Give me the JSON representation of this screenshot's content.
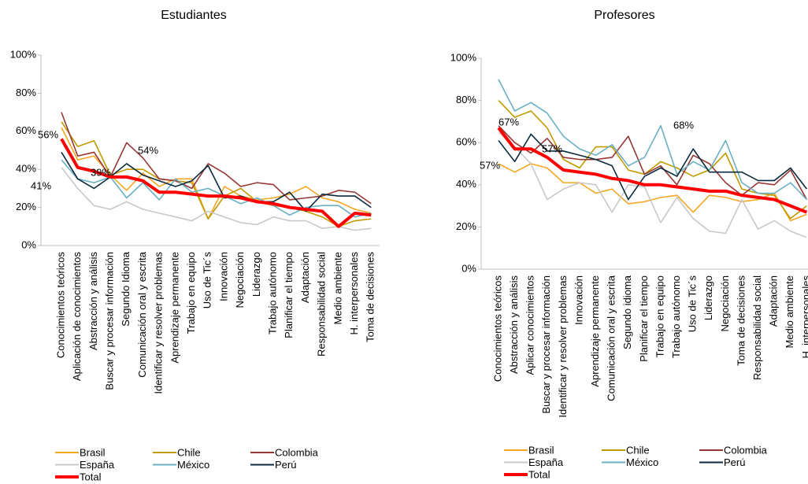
{
  "chart_data": [
    {
      "type": "line",
      "title": "Estudiantes",
      "categories": [
        "Conocimientos teóricos",
        "Aplicación de conocimientos",
        "Abstracción y análisis",
        "Buscar y procesar información",
        "Segundo Idioma",
        "Comunicación oral y escrita",
        "Identificar y resolver problemas",
        "Aprendizaje permanente",
        "Trabajo en equipo",
        "Uso de Tic´s",
        "Innovación",
        "Negociación",
        "Liderazgo",
        "Trabajo autónomo",
        "Planificar el tiempo",
        "Adaptación",
        "Responsabilidad social",
        "Medio ambiente",
        "H. interpersonales",
        "Toma de decisiones"
      ],
      "series": [
        {
          "name": "Brasil",
          "color": "#f5a623",
          "values": [
            62,
            45,
            47,
            37,
            29,
            38,
            31,
            35,
            35,
            14,
            31,
            26,
            24,
            25,
            27,
            31,
            25,
            23,
            19,
            17
          ]
        },
        {
          "name": "Chile",
          "color": "#c09a00",
          "values": [
            65,
            52,
            55,
            37,
            40,
            40,
            35,
            34,
            33,
            14,
            26,
            30,
            23,
            21,
            20,
            18,
            15,
            10,
            13,
            14
          ]
        },
        {
          "name": "Colombia",
          "color": "#953735",
          "values": [
            70,
            47,
            49,
            36,
            54,
            46,
            35,
            34,
            30,
            43,
            38,
            31,
            33,
            32,
            24,
            25,
            26,
            29,
            28,
            22
          ]
        },
        {
          "name": "España",
          "color": "#c8c8c8",
          "values": [
            41,
            30,
            21,
            19,
            23,
            19,
            17,
            15,
            13,
            18,
            15,
            12,
            11,
            15,
            13,
            13,
            9,
            10,
            8,
            9
          ]
        },
        {
          "name": "México",
          "color": "#6aafc4",
          "values": [
            45,
            35,
            33,
            36,
            25,
            33,
            24,
            35,
            28,
            30,
            26,
            22,
            25,
            21,
            16,
            20,
            21,
            21,
            15,
            17
          ]
        },
        {
          "name": "Perú",
          "color": "#0b2a3c",
          "values": [
            49,
            35,
            30,
            36,
            43,
            37,
            34,
            31,
            34,
            42,
            25,
            26,
            23,
            23,
            28,
            18,
            27,
            26,
            26,
            20
          ]
        },
        {
          "name": "Total",
          "color": "#ff0000",
          "values": [
            56,
            41,
            39,
            36,
            36,
            34,
            28,
            28,
            27,
            26,
            26,
            25,
            23,
            22,
            20,
            19,
            18,
            10,
            17,
            16
          ]
        }
      ],
      "annotations": [
        "56%",
        "41%",
        "39%",
        "54%"
      ],
      "ylim": [
        0,
        100
      ],
      "yticks": [
        {
          "value": 0,
          "label": "0%"
        },
        {
          "value": 20,
          "label": "20%"
        },
        {
          "value": 40,
          "label": "40%"
        },
        {
          "value": 60,
          "label": "60%"
        },
        {
          "value": 80,
          "label": "80%"
        },
        {
          "value": 100,
          "label": "100%"
        }
      ],
      "grid": false,
      "legend": "bottom"
    },
    {
      "type": "line",
      "title": "Profesores",
      "categories": [
        "Conocimientos teóricos",
        "Abstracción y análisis",
        "Aplicar conocimientos",
        "Buscar y procesar información",
        "Identificar y resolver problemas",
        "Innovación",
        "Aprendizaje permanente",
        "Comunicación oral y escrita",
        "Segundo idioma",
        "Planificar el tiempo",
        "Trabajo en equipo",
        "Trabajo autónomo",
        "Uso de Tic´s",
        "Liderazgo",
        "Negociación",
        "Toma de decisiones",
        "Responsabilidad social",
        "Adaptación",
        "Medio ambiente",
        "H. interpersonales"
      ],
      "series": [
        {
          "name": "Brasil",
          "color": "#f5a623",
          "values": [
            50,
            46,
            50,
            48,
            41,
            41,
            36,
            38,
            31,
            32,
            34,
            35,
            27,
            35,
            34,
            32,
            33,
            36,
            23,
            26
          ]
        },
        {
          "name": "Chile",
          "color": "#c09a00",
          "values": [
            80,
            72,
            75,
            67,
            52,
            48,
            58,
            58,
            47,
            45,
            51,
            48,
            44,
            47,
            55,
            38,
            36,
            35,
            24,
            30
          ]
        },
        {
          "name": "Colombia",
          "color": "#953735",
          "values": [
            68,
            60,
            55,
            62,
            53,
            52,
            52,
            53,
            63,
            45,
            49,
            40,
            54,
            50,
            41,
            35,
            41,
            40,
            47,
            33
          ]
        },
        {
          "name": "España",
          "color": "#c8c8c8",
          "values": [
            65,
            58,
            50,
            33,
            38,
            41,
            40,
            27,
            40,
            39,
            22,
            34,
            24,
            18,
            17,
            33,
            19,
            23,
            18,
            15
          ]
        },
        {
          "name": "México",
          "color": "#6aafc4",
          "values": [
            90,
            75,
            79,
            74,
            63,
            57,
            54,
            59,
            49,
            53,
            68,
            45,
            51,
            47,
            61,
            41,
            36,
            36,
            41,
            33
          ]
        },
        {
          "name": "Perú",
          "color": "#0b2a3c",
          "values": [
            61,
            51,
            64,
            56,
            56,
            54,
            52,
            49,
            33,
            44,
            48,
            44,
            57,
            46,
            46,
            46,
            42,
            42,
            48,
            38
          ]
        },
        {
          "name": "Total",
          "color": "#ff0000",
          "values": [
            67,
            57,
            57,
            53,
            47,
            46,
            45,
            43,
            42,
            40,
            40,
            39,
            38,
            37,
            37,
            35,
            34,
            33,
            30,
            27
          ]
        }
      ],
      "annotations": [
        "67%",
        "57%",
        "57%",
        "68%"
      ],
      "ylim": [
        0,
        100
      ],
      "yticks": [
        {
          "value": 0,
          "label": "0%"
        },
        {
          "value": 20,
          "label": "20%"
        },
        {
          "value": 40,
          "label": "40%"
        },
        {
          "value": 60,
          "label": "60%"
        },
        {
          "value": 80,
          "label": "80%"
        },
        {
          "value": 100,
          "label": "100%"
        }
      ],
      "grid": false,
      "legend": "bottom"
    }
  ]
}
